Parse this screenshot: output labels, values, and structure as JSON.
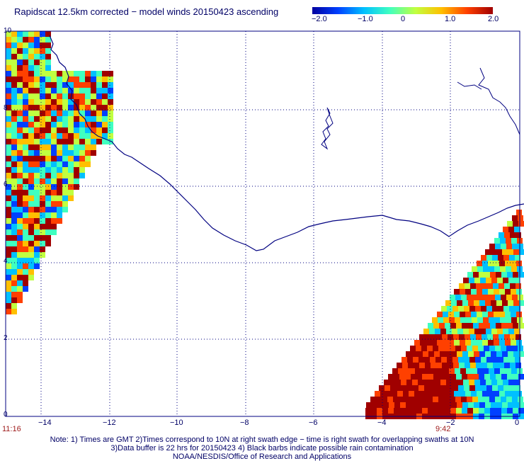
{
  "title": "Rapidscat 12.5km corrected − model winds 20150423 ascending",
  "colorbar": {
    "ticks": [
      "−2.0",
      "−1.0",
      "0",
      "1.0",
      "2.0"
    ],
    "colors": [
      "#0000a0",
      "#0040ff",
      "#00c0ff",
      "#40ffc0",
      "#c0ff40",
      "#ffc000",
      "#ff4000",
      "#a00000"
    ]
  },
  "axes": {
    "x_ticks": [
      "−14",
      "−12",
      "−10",
      "−8",
      "−6",
      "−4",
      "−2",
      "0"
    ],
    "y_ticks": [
      "10",
      "8",
      "6",
      "4",
      "2",
      "0"
    ],
    "lon_range": [
      -15,
      0
    ],
    "lat_range": [
      0,
      10
    ],
    "grid": "dotted"
  },
  "swath_times": {
    "left": "11:16",
    "right": "9:42"
  },
  "notes": {
    "line1": "Note: 1) Times are GMT 2)Times correspond to 10N at right swath edge − time is right swath for overlapping swaths at 10N",
    "line2": "3)Data buffer is 22 hrs for 20150423 4) Black barbs indicate possible rain contamination",
    "line3": "NOAA/NESDIS/Office of Research and Applications"
  },
  "map": {
    "coastline_color": "#000080",
    "grid_color": "#000080"
  }
}
